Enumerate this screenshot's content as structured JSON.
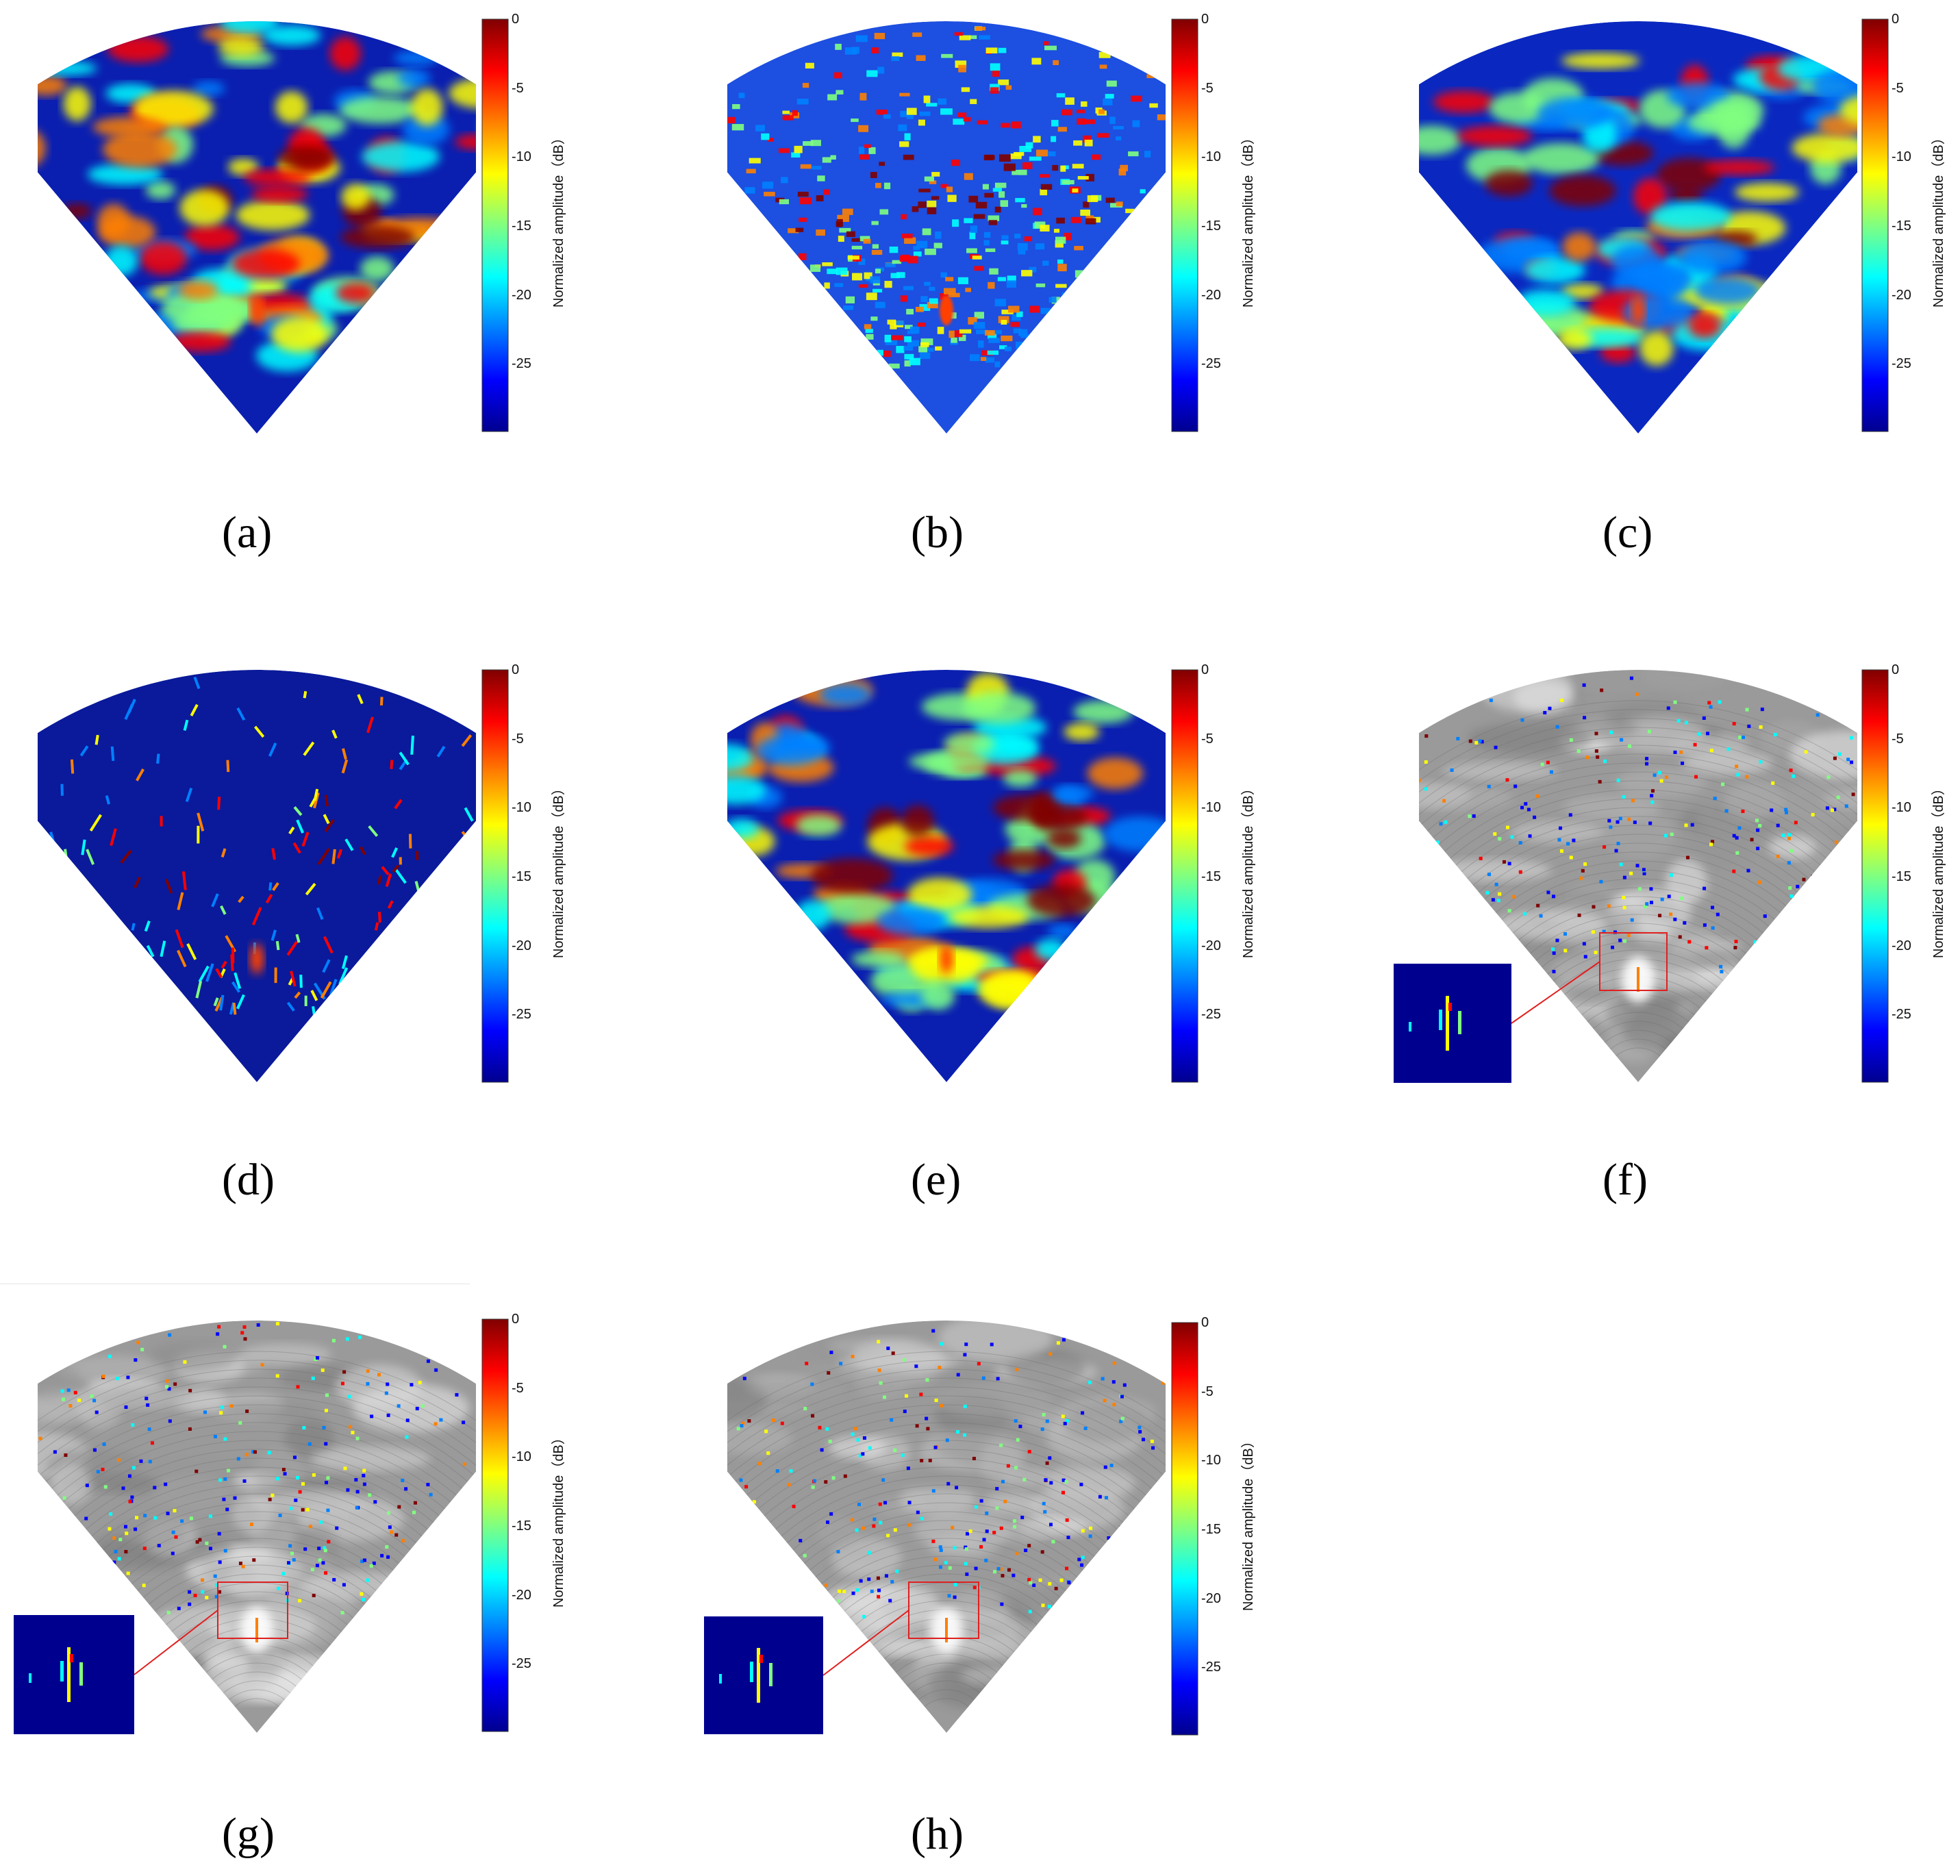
{
  "colorbar": {
    "label": "Normalized amplitude（dB）",
    "ticks_a": [
      "0",
      "-5",
      "-10",
      "-15",
      "-20",
      "-25"
    ],
    "ticks": [
      "0",
      "-5",
      "-10",
      "-15",
      "-20",
      "-25"
    ],
    "colormap": [
      "#00008f",
      "#0000ff",
      "#0080ff",
      "#00ffff",
      "#80ff80",
      "#ffff00",
      "#ff8000",
      "#ff0000",
      "#800000"
    ]
  },
  "panels": [
    {
      "id": "a",
      "caption": "(a)",
      "style": "blobs",
      "background": "#0a1fb0"
    },
    {
      "id": "b",
      "caption": "(b)",
      "style": "speckle",
      "background": "#1d4fe0"
    },
    {
      "id": "c",
      "caption": "(c)",
      "style": "blobs-mesh",
      "background": "#0a28c0"
    },
    {
      "id": "d",
      "caption": "(d)",
      "style": "sparse-lines",
      "background": "#0a1a9a"
    },
    {
      "id": "e",
      "caption": "(e)",
      "style": "bands",
      "background": "#0a1fb0"
    },
    {
      "id": "f",
      "caption": "(f)",
      "style": "overlay-gray",
      "background": "#9a9a9a"
    },
    {
      "id": "g",
      "caption": "(g)",
      "style": "overlay-gray",
      "background": "#9a9a9a"
    },
    {
      "id": "h",
      "caption": "(h)",
      "style": "overlay-gray",
      "background": "#9a9a9a"
    }
  ]
}
